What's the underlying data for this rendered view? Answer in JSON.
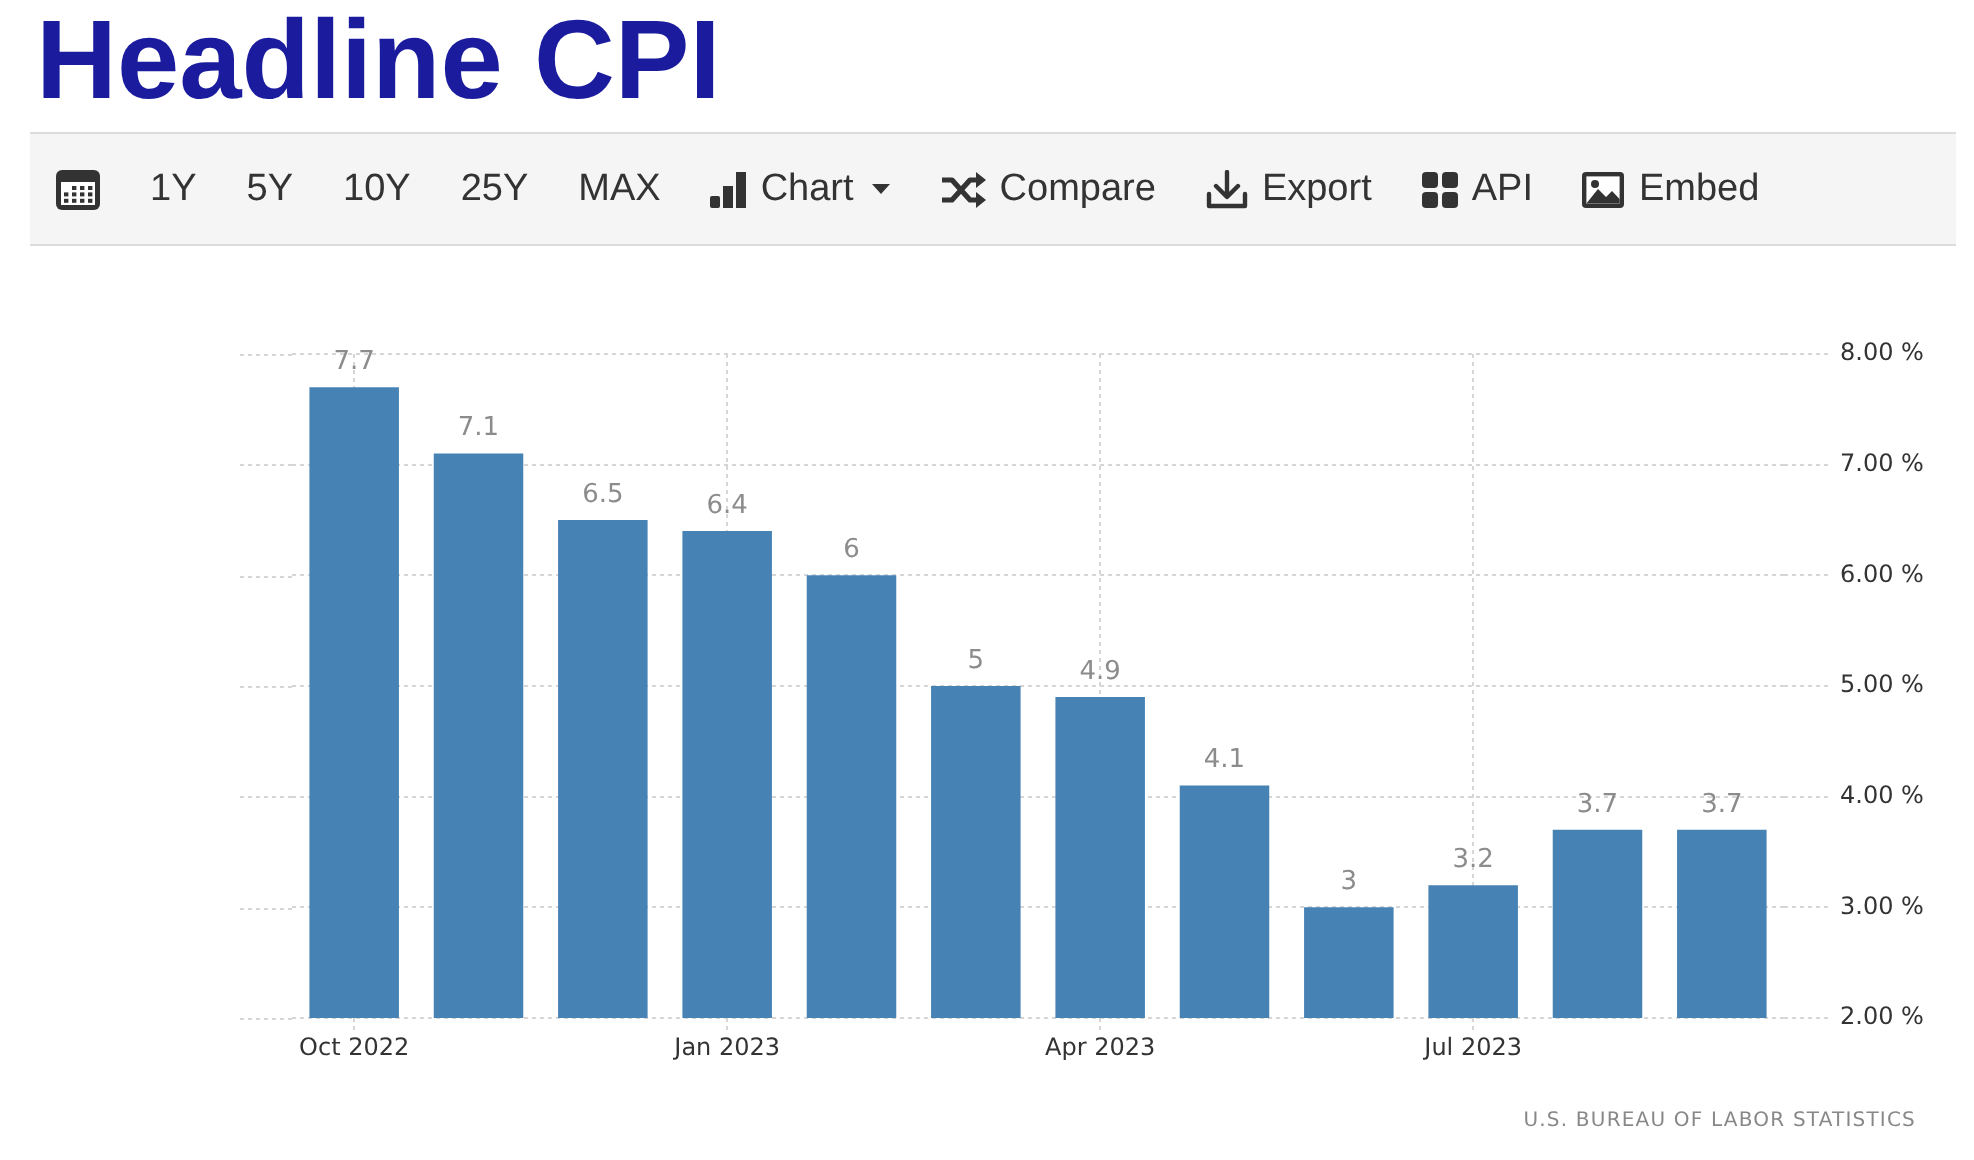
{
  "chart_data": {
    "type": "bar",
    "title": "Headline CPI",
    "categories": [
      "Oct 2022",
      null,
      null,
      "Jan 2023",
      null,
      null,
      "Apr 2023",
      null,
      null,
      "Jul 2023",
      null,
      null
    ],
    "values": [
      7.7,
      7.1,
      6.5,
      6.4,
      6,
      5,
      4.9,
      4.1,
      3,
      3.2,
      3.7,
      3.7
    ],
    "color": "#4682b4",
    "ylim": [
      2,
      8
    ],
    "yticks": [
      {
        "value": 2,
        "label": "2.00 %"
      },
      {
        "value": 3,
        "label": "3.00 %"
      },
      {
        "value": 4,
        "label": "4.00 %"
      },
      {
        "value": 5,
        "label": "5.00 %"
      },
      {
        "value": 6,
        "label": "6.00 %"
      },
      {
        "value": 7,
        "label": "7.00 %"
      },
      {
        "value": 8,
        "label": "8.00 %"
      }
    ],
    "grid": true,
    "data_labels": true,
    "annotations": [
      "1Y",
      "5Y",
      "10Y",
      "25Y",
      "MAX",
      "Chart",
      "Compare",
      "Export",
      "API",
      "Embed",
      "U.S. BUREAU OF LABOR STATISTICS"
    ]
  }
}
